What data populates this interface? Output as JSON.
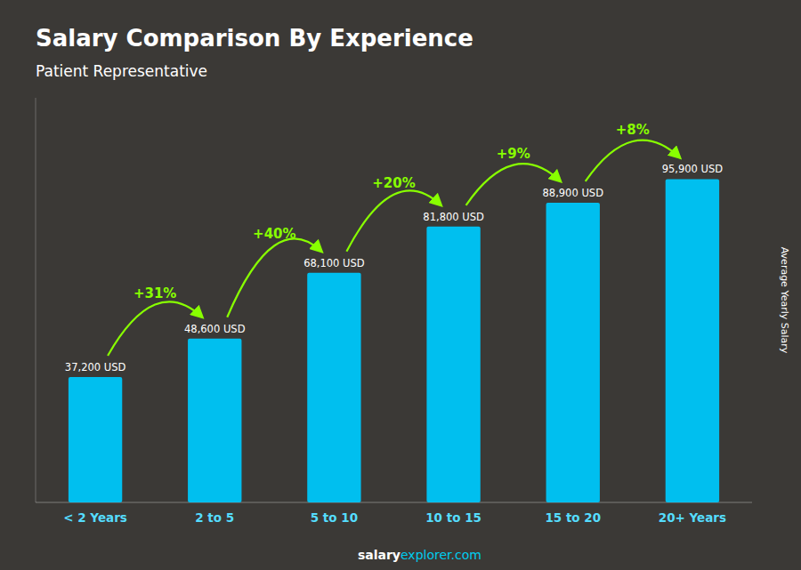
{
  "chart_data": {
    "type": "bar",
    "title": "Salary Comparison By Experience",
    "subtitle": "Patient Representative",
    "ylabel": "Average Yearly Salary",
    "categories": [
      "< 2 Years",
      "2 to 5",
      "5 to 10",
      "10 to 15",
      "15 to 20",
      "20+ Years"
    ],
    "values": [
      37200,
      48600,
      68100,
      81800,
      88900,
      95900
    ],
    "value_labels": [
      "37,200 USD",
      "48,600 USD",
      "68,100 USD",
      "81,800 USD",
      "88,900 USD",
      "95,900 USD"
    ],
    "data_labels": true,
    "color": "#00BFEF",
    "ylim": [
      0,
      120000
    ],
    "tick_labels": "x",
    "grid": false,
    "annotations": [
      "+31%",
      "+40%",
      "+20%",
      "+9%",
      "+8%"
    ],
    "footer": [
      "salary",
      "explorer.com"
    ]
  }
}
